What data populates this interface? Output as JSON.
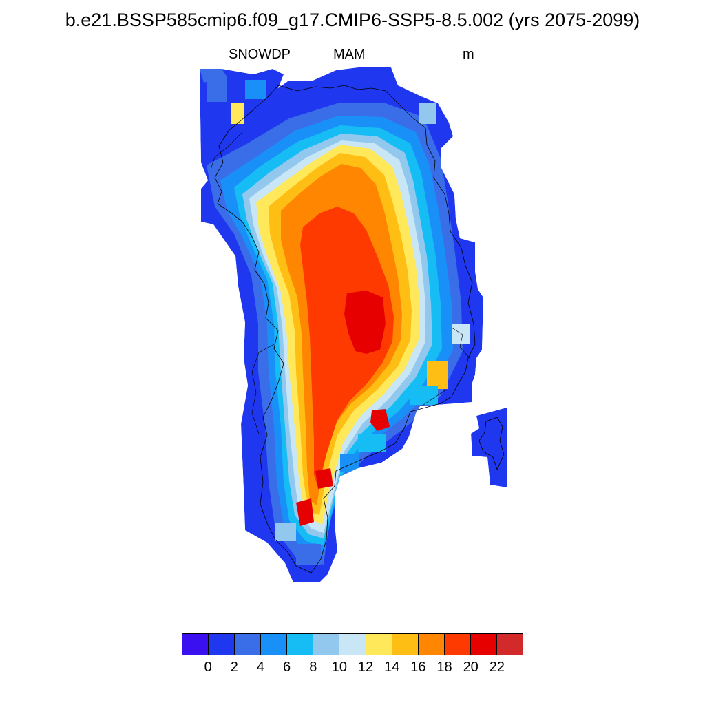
{
  "header": {
    "title": "b.e21.BSSP585cmip6.f09_g17.CMIP6-SSP5-8.5.002 (yrs 2075-2099)",
    "variable": "SNOWDP",
    "season": "MAM",
    "units": "m"
  },
  "colorbar": {
    "colors": [
      "#3a10f0",
      "#1f37ee",
      "#3a6ee8",
      "#1990f8",
      "#16bdf5",
      "#92c8ee",
      "#c8e6f5",
      "#ffe85a",
      "#ffbe14",
      "#ff8600",
      "#ff3a00",
      "#e60000",
      "#d22a2a"
    ],
    "labels": [
      "0",
      "2",
      "4",
      "6",
      "8",
      "10",
      "12",
      "14",
      "16",
      "18",
      "20",
      "22"
    ]
  },
  "map_data": {
    "type": "heatmap",
    "region": "Greenland",
    "levels": [
      0,
      2,
      4,
      6,
      8,
      10,
      12,
      14,
      16,
      18,
      20,
      22
    ]
  }
}
